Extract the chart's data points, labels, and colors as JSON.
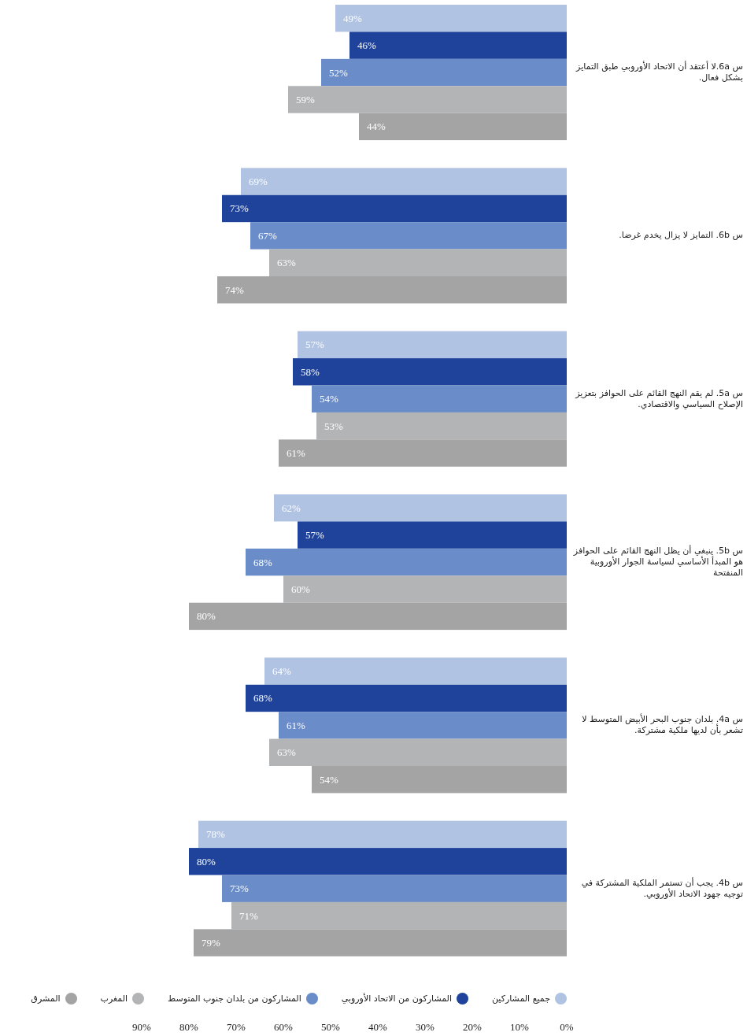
{
  "chart_data": {
    "type": "bar",
    "orientation": "horizontal",
    "categories": [
      "س 6a.لا أعتقد أن الاتحاد الأوروبي طبق التمايز بشكل فعال.",
      "س 6b. التمايز لا يزال يخدم غرضا.",
      "س 5a. لم يقم النهج القائم على الحوافز بتعزيز الإصلاح السياسي والاقتصادي.",
      "س 5b. ينبغي أن يظل النهج القائم على الحوافز هو المبدأ الأساسي لسياسة الجوار الأوروبية المنفتحة",
      "س 4a. بلدان جنوب البحر الأبيض المتوسط لا تشعر بأن لديها ملكية مشتركة.",
      "س 4b. يجب أن تستمر الملكية المشتركة في توجيه جهود الاتحاد الأوروبي."
    ],
    "series": [
      {
        "name": "جميع المشاركين",
        "color": "#b0c3e3",
        "values": [
          49,
          69,
          57,
          62,
          64,
          78
        ],
        "value_labels": [
          "49%",
          "69%",
          "57%",
          "62%",
          "64%",
          "78%"
        ]
      },
      {
        "name": "المشاركون من الاتحاد الأوروبي",
        "color": "#1f439a",
        "values": [
          46,
          73,
          58,
          57,
          68,
          80
        ],
        "value_labels": [
          "46%",
          "73%",
          "58%",
          "57%",
          "68%",
          "80%"
        ]
      },
      {
        "name": "المشاركون من بلدان جنوب المتوسط",
        "color": "#6a8cc8",
        "values": [
          52,
          67,
          54,
          68,
          61,
          73
        ],
        "value_labels": [
          "52%",
          "67%",
          "54%",
          "68%",
          "61%",
          "73%"
        ]
      },
      {
        "name": "المغرب",
        "color": "#b2b4b5",
        "values": [
          59,
          63,
          53,
          60,
          63,
          71
        ],
        "value_labels": [
          "59%",
          "63%",
          "53%",
          "60%",
          "63%",
          "71%"
        ]
      },
      {
        "name": "المشرق",
        "color": "#a5a4a4",
        "values": [
          44,
          74,
          61,
          80,
          54,
          79
        ],
        "value_labels": [
          "44%",
          "74%",
          "61%",
          "80%",
          "54%",
          "79%"
        ]
      }
    ],
    "xlim": [
      90,
      0
    ],
    "xticks": [
      {
        "value": 90,
        "label": "90%"
      },
      {
        "value": 80,
        "label": "80%"
      },
      {
        "value": 70,
        "label": "70%"
      },
      {
        "value": 60,
        "label": "60%"
      },
      {
        "value": 50,
        "label": "50%"
      },
      {
        "value": 40,
        "label": "40%"
      },
      {
        "value": 30,
        "label": "30%"
      },
      {
        "value": 20,
        "label": "20%"
      },
      {
        "value": 10,
        "label": "10%"
      },
      {
        "value": 0,
        "label": "0%"
      }
    ],
    "legend": "bottom"
  }
}
